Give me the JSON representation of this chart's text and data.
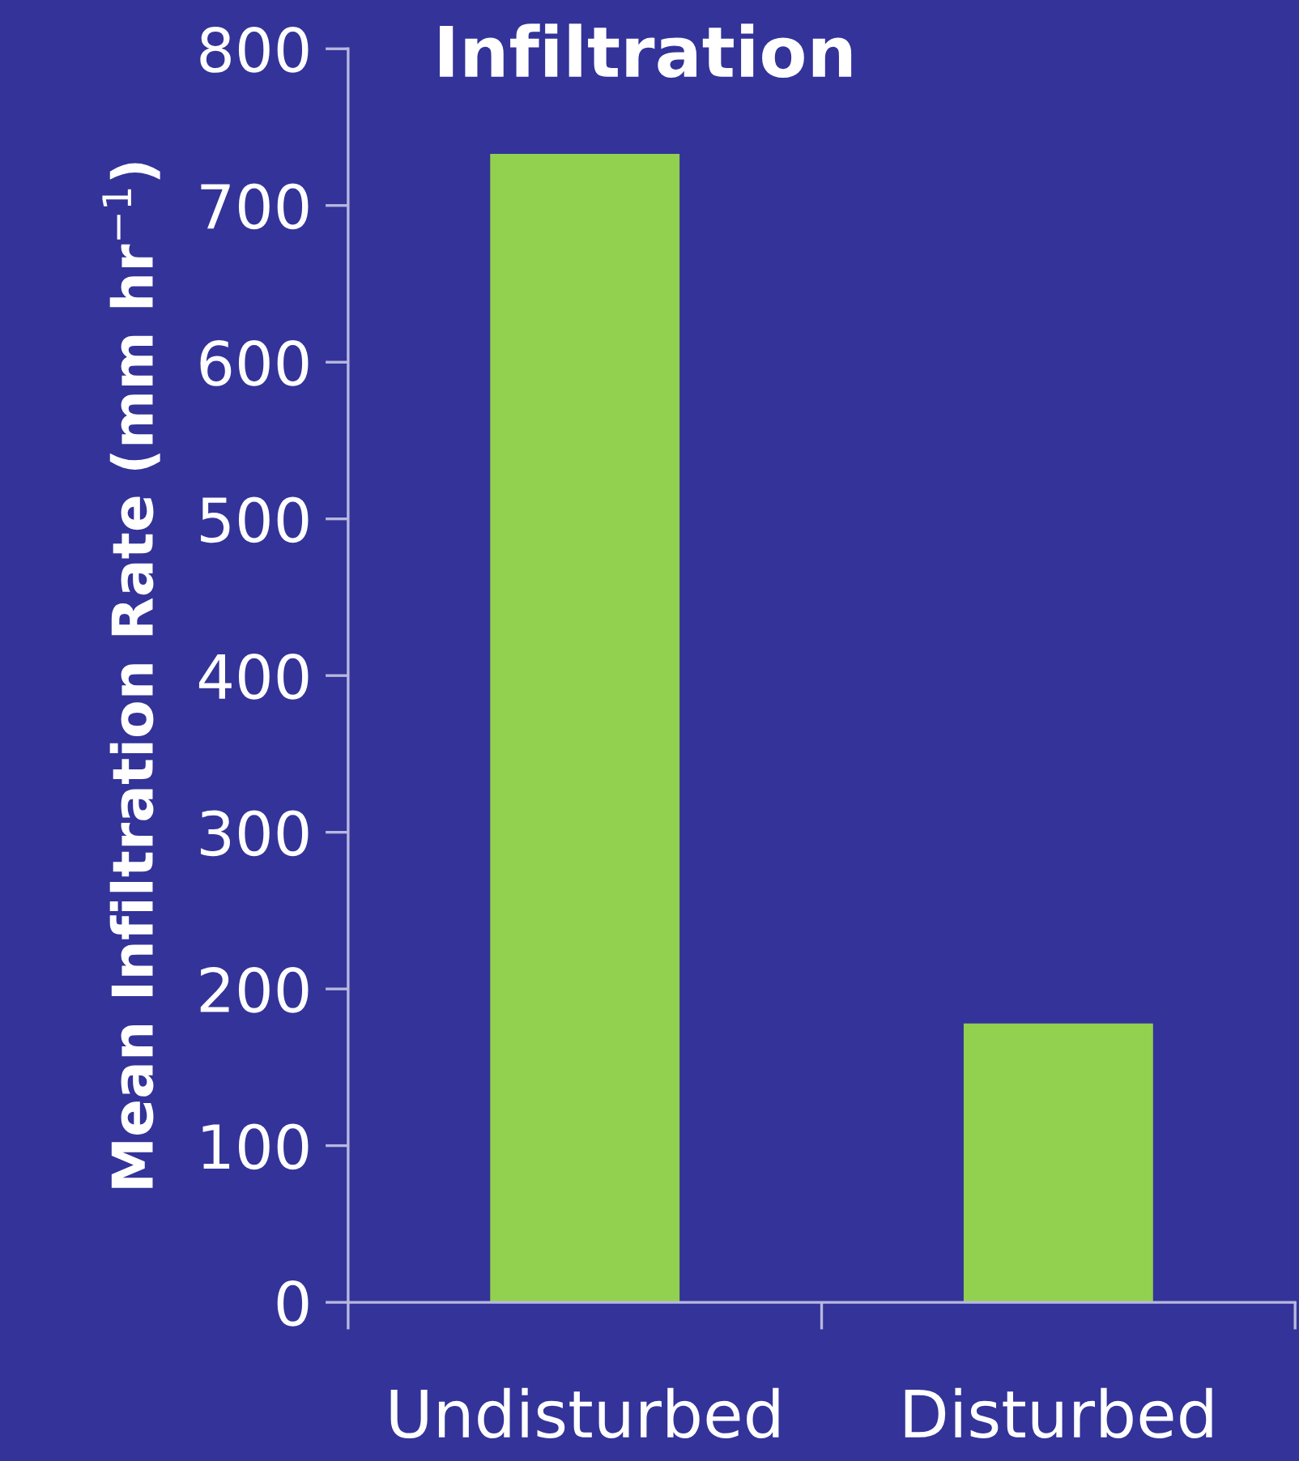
{
  "chart_data": {
    "type": "bar",
    "title": "Infiltration",
    "ylabel": "Mean Infiltration Rate (mm hr$^{−1}$)",
    "categories": [
      "Undisturbed",
      "Disturbed"
    ],
    "values": [
      733,
      178
    ],
    "color": "#92d050",
    "ylim": [
      0,
      800
    ],
    "yticks": [
      0,
      100,
      200,
      300,
      400,
      500,
      600,
      700,
      800
    ],
    "grid": false
  }
}
